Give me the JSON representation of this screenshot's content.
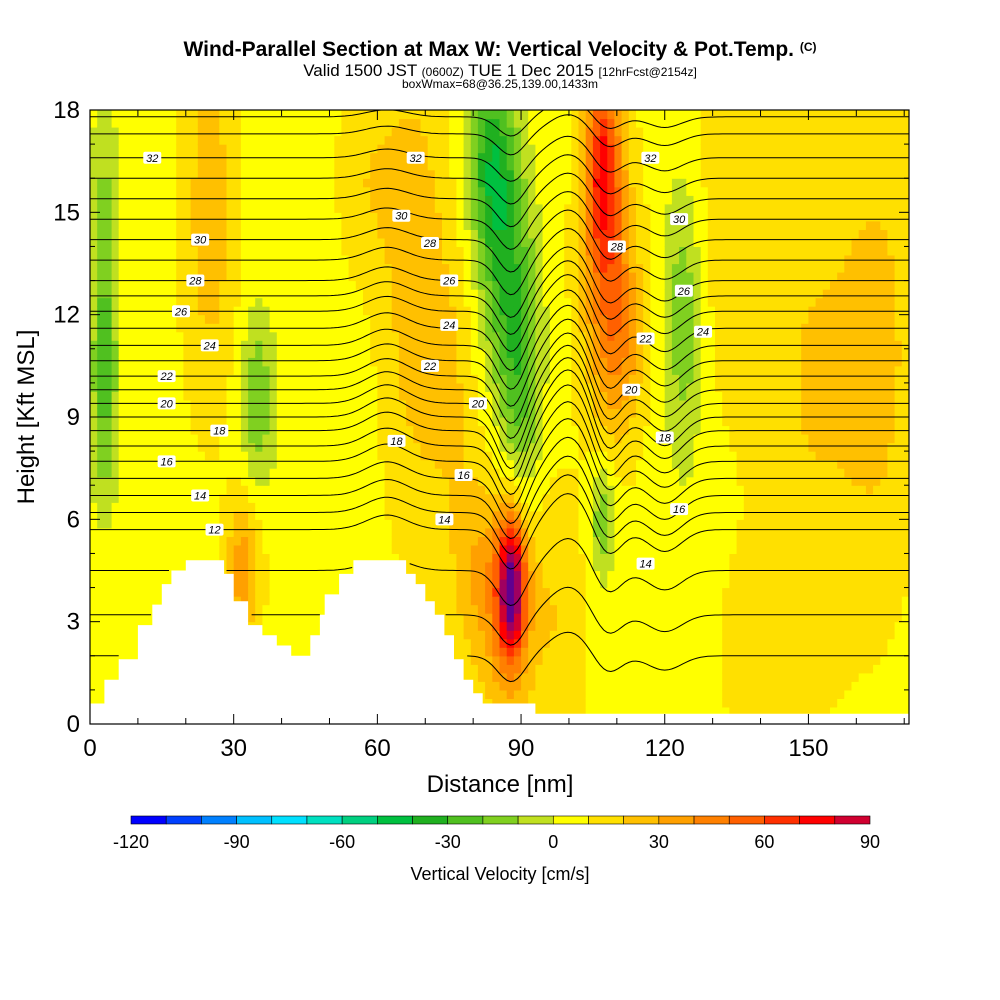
{
  "chart_data": {
    "type": "heatmap",
    "title": "Wind-Parallel Section at Max W: Vertical Velocity & Pot.Temp.",
    "title_mark": "(C)",
    "subtitle": {
      "valid_prefix": "Valid 1500 JST",
      "utc": "(0600Z)",
      "date": "TUE 1 Dec 2015",
      "forecast": "[12hrFcst@2154z]"
    },
    "info_line": "boxWmax=68@36.25,139.00,1433m",
    "xlabel": "Distance [nm]",
    "ylabel": "Height [Kft MSL]",
    "xlim": [
      0,
      171
    ],
    "ylim": [
      0,
      18
    ],
    "x_ticks": [
      0,
      30,
      60,
      90,
      120,
      150
    ],
    "y_ticks": [
      0,
      3,
      6,
      9,
      12,
      15,
      18
    ],
    "colorbar": {
      "label": "Vertical Velocity [cm/s]",
      "tick_labels": [
        "-120",
        "-90",
        "-60",
        "-30",
        "0",
        "30",
        "60",
        "90"
      ],
      "range": [
        -120,
        90
      ],
      "step": 10,
      "colors": [
        "#0000ff",
        "#0040ff",
        "#0080ff",
        "#00c0ff",
        "#00e0ff",
        "#00e0c0",
        "#00d080",
        "#00c040",
        "#20b020",
        "#50c020",
        "#80d020",
        "#c0e020",
        "#ffff00",
        "#ffe000",
        "#ffc000",
        "#ffa000",
        "#ff8000",
        "#ff6000",
        "#ff3000",
        "#ff0000",
        "#d00030",
        "#a00060",
        "#600090"
      ]
    },
    "base_velocity": 6,
    "cells": [
      {
        "x": 3,
        "z": 13,
        "w": -25,
        "sx": 2,
        "sz": 3.5
      },
      {
        "x": 3,
        "z": 9,
        "w": -15,
        "sx": 2,
        "sz": 2
      },
      {
        "x": 25,
        "z": 15,
        "w": 20,
        "sx": 4,
        "sz": 4
      },
      {
        "x": 32,
        "z": 4.5,
        "w": 30,
        "sx": 2.5,
        "sz": 1.5
      },
      {
        "x": 35,
        "z": 9.5,
        "w": -25,
        "sx": 2.5,
        "sz": 1.8
      },
      {
        "x": 47,
        "z": 14,
        "w": -5,
        "sx": 2.5,
        "sz": 3
      },
      {
        "x": 58,
        "z": 16,
        "w": 12,
        "sx": 5,
        "sz": 2
      },
      {
        "x": 68,
        "z": 13,
        "w": 20,
        "sx": 5,
        "sz": 5
      },
      {
        "x": 76,
        "z": 10,
        "w": 12,
        "sx": 4,
        "sz": 3
      },
      {
        "x": 84,
        "z": 16.5,
        "w": -40,
        "sx": 3.5,
        "sz": 2
      },
      {
        "x": 87,
        "z": 13,
        "w": -30,
        "sx": 4,
        "sz": 2.5
      },
      {
        "x": 90,
        "z": 9.5,
        "w": -25,
        "sx": 3,
        "sz": 2.5
      },
      {
        "x": 88,
        "z": 4,
        "w": 80,
        "sx": 2,
        "sz": 1.4
      },
      {
        "x": 87,
        "z": 3.5,
        "w": 30,
        "sx": 4.5,
        "sz": 2.5
      },
      {
        "x": 80,
        "z": 4.5,
        "w": 15,
        "sx": 4,
        "sz": 2
      },
      {
        "x": 98,
        "z": 3,
        "w": 12,
        "sx": 4,
        "sz": 3
      },
      {
        "x": 107,
        "z": 16.5,
        "w": 50,
        "sx": 2.5,
        "sz": 2
      },
      {
        "x": 108,
        "z": 13.5,
        "w": 35,
        "sx": 4,
        "sz": 3
      },
      {
        "x": 111,
        "z": 11,
        "w": 20,
        "sx": 3.5,
        "sz": 2
      },
      {
        "x": 107,
        "z": 6,
        "w": -25,
        "sx": 1.8,
        "sz": 1.2
      },
      {
        "x": 124,
        "z": 12,
        "w": -25,
        "sx": 3,
        "sz": 3
      },
      {
        "x": 132,
        "z": 15,
        "w": 10,
        "sx": 6,
        "sz": 4
      },
      {
        "x": 150,
        "z": 10,
        "w": 14,
        "sx": 8,
        "sz": 6
      },
      {
        "x": 165,
        "z": 11,
        "w": 16,
        "sx": 6,
        "sz": 5
      },
      {
        "x": 140,
        "z": 2,
        "w": 10,
        "sx": 6,
        "sz": 2
      }
    ],
    "terrain": [
      [
        0,
        0.6
      ],
      [
        3,
        1.3
      ],
      [
        6,
        1.9
      ],
      [
        10,
        2.9
      ],
      [
        13,
        3.5
      ],
      [
        15,
        4.1
      ],
      [
        17,
        4.5
      ],
      [
        20,
        4.8
      ],
      [
        26,
        4.8
      ],
      [
        28,
        4.4
      ],
      [
        30,
        3.6
      ],
      [
        33,
        2.9
      ],
      [
        36,
        2.6
      ],
      [
        39,
        2.3
      ],
      [
        42,
        2.0
      ],
      [
        45,
        2.0
      ],
      [
        46,
        2.6
      ],
      [
        48,
        3.2
      ],
      [
        49,
        3.8
      ],
      [
        52,
        4.4
      ],
      [
        55,
        4.8
      ],
      [
        64,
        4.8
      ],
      [
        66,
        4.4
      ],
      [
        68,
        4.1
      ],
      [
        70,
        3.6
      ],
      [
        72,
        3.2
      ],
      [
        74,
        2.6
      ],
      [
        76,
        1.9
      ],
      [
        78,
        1.3
      ],
      [
        80,
        0.9
      ],
      [
        82,
        0.6
      ],
      [
        87,
        0.6
      ],
      [
        90,
        0.6
      ],
      [
        93,
        0.3
      ],
      [
        96,
        0.3
      ],
      [
        171,
        0.3
      ]
    ],
    "theta_contours": [
      {
        "label": "12",
        "base": 5.7,
        "label_x": 26
      },
      {
        "label": "14",
        "base": 6.7,
        "label_x": 23
      },
      {
        "label": "16",
        "base": 7.7,
        "label_x": 16
      },
      {
        "label": "18",
        "base": 8.6,
        "label_x": 27
      },
      {
        "label": "20",
        "base": 9.4,
        "label_x": 16
      },
      {
        "label": "22",
        "base": 10.2,
        "label_x": 16
      },
      {
        "label": "24",
        "base": 11.1,
        "label_x": 25
      },
      {
        "label": "26",
        "base": 12.1,
        "label_x": 19
      },
      {
        "label": "28",
        "base": 13.0,
        "label_x": 22
      },
      {
        "label": "30",
        "base": 14.2,
        "label_x": 23
      },
      {
        "label": "32",
        "base": 16.6,
        "label_x": 13
      }
    ],
    "extra_contour_labels": [
      {
        "label": "32",
        "x": 68,
        "z": 16.6
      },
      {
        "label": "30",
        "x": 65,
        "z": 14.9
      },
      {
        "label": "28",
        "x": 71,
        "z": 14.1
      },
      {
        "label": "26",
        "x": 75,
        "z": 13.0
      },
      {
        "label": "24",
        "x": 75,
        "z": 11.7
      },
      {
        "label": "22",
        "x": 71,
        "z": 10.5
      },
      {
        "label": "20",
        "x": 81,
        "z": 9.4
      },
      {
        "label": "18",
        "x": 64,
        "z": 8.3
      },
      {
        "label": "16",
        "x": 78,
        "z": 7.3
      },
      {
        "label": "14",
        "x": 74,
        "z": 6.0
      },
      {
        "label": "32",
        "x": 117,
        "z": 16.6
      },
      {
        "label": "30",
        "x": 123,
        "z": 14.8
      },
      {
        "label": "28",
        "x": 110,
        "z": 14.0
      },
      {
        "label": "26",
        "x": 124,
        "z": 12.7
      },
      {
        "label": "24",
        "x": 128,
        "z": 11.5
      },
      {
        "label": "22",
        "x": 116,
        "z": 11.3
      },
      {
        "label": "20",
        "x": 113,
        "z": 9.8
      },
      {
        "label": "18",
        "x": 120,
        "z": 8.4
      },
      {
        "label": "16",
        "x": 123,
        "z": 6.3
      },
      {
        "label": "14",
        "x": 116,
        "z": 4.7
      }
    ]
  }
}
